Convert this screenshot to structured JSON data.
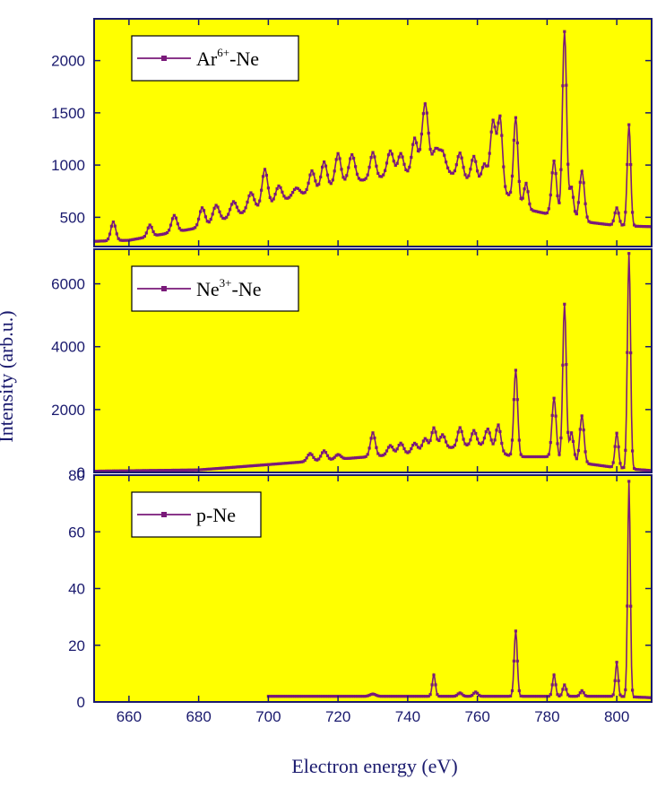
{
  "colors": {
    "plot_background": "#ffff00",
    "series_line": "#7a1a7a",
    "axis": "#1a1a6e",
    "legend_background": "#ffffff"
  },
  "xlabel": "Electron energy (eV)",
  "ylabel": "Intensity (arb.u.)",
  "chart_data": [
    {
      "type": "line",
      "panel": "top",
      "legend": {
        "base": "Ar",
        "sup": "6+",
        "suffix": "-Ne",
        "placement": "top-left"
      },
      "xlim": [
        650,
        810
      ],
      "ylim": [
        220,
        2400
      ],
      "xticks": [
        660,
        680,
        700,
        720,
        740,
        760,
        780,
        800
      ],
      "yticks": [
        500,
        1000,
        1500,
        2000
      ],
      "ytick_labels": [
        "500",
        "1000",
        "1500",
        "2000"
      ],
      "baseline": {
        "x": [
          650,
          660,
          680,
          700,
          720,
          740,
          750,
          760,
          770,
          775,
          790,
          800,
          810
        ],
        "y": [
          270,
          280,
          400,
          620,
          820,
          920,
          950,
          820,
          700,
          570,
          460,
          420,
          410
        ]
      },
      "peaks": [
        {
          "x": 655.5,
          "h": 180,
          "w": 0.7
        },
        {
          "x": 666,
          "h": 110,
          "w": 0.7
        },
        {
          "x": 673,
          "h": 160,
          "w": 0.8
        },
        {
          "x": 681,
          "h": 180,
          "w": 0.8
        },
        {
          "x": 685,
          "h": 160,
          "w": 0.9
        },
        {
          "x": 690,
          "h": 140,
          "w": 0.9
        },
        {
          "x": 695,
          "h": 170,
          "w": 0.9
        },
        {
          "x": 699,
          "h": 350,
          "w": 0.8
        },
        {
          "x": 703,
          "h": 150,
          "w": 0.9
        },
        {
          "x": 708,
          "h": 80,
          "w": 1.0
        },
        {
          "x": 712.5,
          "h": 200,
          "w": 0.8
        },
        {
          "x": 716,
          "h": 250,
          "w": 0.8
        },
        {
          "x": 720,
          "h": 290,
          "w": 0.8
        },
        {
          "x": 724,
          "h": 260,
          "w": 0.9
        },
        {
          "x": 730,
          "h": 250,
          "w": 0.8
        },
        {
          "x": 735,
          "h": 240,
          "w": 0.9
        },
        {
          "x": 738,
          "h": 200,
          "w": 0.8
        },
        {
          "x": 742,
          "h": 330,
          "w": 0.8
        },
        {
          "x": 745,
          "h": 650,
          "w": 0.9
        },
        {
          "x": 748,
          "h": 200,
          "w": 0.9
        },
        {
          "x": 750,
          "h": 170,
          "w": 0.9
        },
        {
          "x": 755,
          "h": 230,
          "w": 0.8
        },
        {
          "x": 759,
          "h": 250,
          "w": 0.8
        },
        {
          "x": 762,
          "h": 210,
          "w": 0.8
        },
        {
          "x": 764.5,
          "h": 650,
          "w": 0.8
        },
        {
          "x": 766.5,
          "h": 700,
          "w": 0.7
        },
        {
          "x": 771,
          "h": 780,
          "w": 0.6
        },
        {
          "x": 774,
          "h": 230,
          "w": 0.6
        },
        {
          "x": 782,
          "h": 520,
          "w": 0.7
        },
        {
          "x": 785,
          "h": 1780,
          "w": 0.6
        },
        {
          "x": 787,
          "h": 300,
          "w": 0.6
        },
        {
          "x": 790,
          "h": 480,
          "w": 0.7
        },
        {
          "x": 800,
          "h": 170,
          "w": 0.6
        },
        {
          "x": 803.5,
          "h": 970,
          "w": 0.5
        }
      ]
    },
    {
      "type": "line",
      "panel": "middle",
      "legend": {
        "base": "Ne",
        "sup": "3+",
        "suffix": "-Ne",
        "placement": "top-left"
      },
      "xlim": [
        650,
        810
      ],
      "ylim": [
        0,
        7100
      ],
      "xticks": [
        660,
        680,
        700,
        720,
        740,
        760,
        780,
        800
      ],
      "yticks": [
        0,
        2000,
        4000,
        6000
      ],
      "ytick_labels": [
        "0",
        "2000",
        "4000",
        "6000"
      ],
      "baseline": {
        "x": [
          650,
          680,
          700,
          720,
          740,
          760,
          770,
          780,
          790,
          800,
          805,
          810
        ],
        "y": [
          40,
          80,
          250,
          420,
          600,
          900,
          500,
          500,
          300,
          150,
          100,
          60
        ]
      },
      "peaks": [
        {
          "x": 712,
          "h": 250,
          "w": 0.8
        },
        {
          "x": 716,
          "h": 300,
          "w": 0.8
        },
        {
          "x": 720,
          "h": 150,
          "w": 0.8
        },
        {
          "x": 730,
          "h": 750,
          "w": 0.7
        },
        {
          "x": 735,
          "h": 300,
          "w": 0.8
        },
        {
          "x": 738,
          "h": 350,
          "w": 0.8
        },
        {
          "x": 742,
          "h": 300,
          "w": 0.8
        },
        {
          "x": 745,
          "h": 400,
          "w": 0.8
        },
        {
          "x": 747.5,
          "h": 700,
          "w": 0.7
        },
        {
          "x": 750,
          "h": 450,
          "w": 0.8
        },
        {
          "x": 755,
          "h": 600,
          "w": 0.7
        },
        {
          "x": 759,
          "h": 450,
          "w": 0.7
        },
        {
          "x": 763,
          "h": 600,
          "w": 0.8
        },
        {
          "x": 766,
          "h": 850,
          "w": 0.7
        },
        {
          "x": 771,
          "h": 2750,
          "w": 0.55
        },
        {
          "x": 782,
          "h": 1900,
          "w": 0.6
        },
        {
          "x": 785,
          "h": 4950,
          "w": 0.5
        },
        {
          "x": 787,
          "h": 900,
          "w": 0.6
        },
        {
          "x": 790,
          "h": 1500,
          "w": 0.6
        },
        {
          "x": 800,
          "h": 1100,
          "w": 0.5
        },
        {
          "x": 803.5,
          "h": 6850,
          "w": 0.45
        }
      ]
    },
    {
      "type": "line",
      "panel": "bottom",
      "legend": {
        "base": "p-Ne",
        "sup": "",
        "suffix": "",
        "placement": "top-left"
      },
      "xlim": [
        650,
        810
      ],
      "ylim": [
        0,
        80
      ],
      "xticks": [
        660,
        680,
        700,
        720,
        740,
        760,
        780,
        800
      ],
      "xtick_labels": [
        "660",
        "680",
        "700",
        "720",
        "740",
        "760",
        "780",
        "800"
      ],
      "yticks": [
        0,
        20,
        40,
        60,
        80
      ],
      "ytick_labels": [
        "0",
        "20",
        "40",
        "60",
        "80"
      ],
      "x_start": 700,
      "baseline": {
        "x": [
          700,
          720,
          740,
          760,
          780,
          800,
          810
        ],
        "y": [
          2,
          2,
          2,
          2,
          2,
          2,
          1.5
        ]
      },
      "peaks": [
        {
          "x": 730,
          "h": 0.8,
          "w": 0.8
        },
        {
          "x": 747.5,
          "h": 7.5,
          "w": 0.45
        },
        {
          "x": 755,
          "h": 1.2,
          "w": 0.6
        },
        {
          "x": 759.5,
          "h": 1.5,
          "w": 0.6
        },
        {
          "x": 771,
          "h": 23,
          "w": 0.45
        },
        {
          "x": 782,
          "h": 7.5,
          "w": 0.45
        },
        {
          "x": 785,
          "h": 4,
          "w": 0.5
        },
        {
          "x": 790,
          "h": 2,
          "w": 0.5
        },
        {
          "x": 800,
          "h": 12,
          "w": 0.4
        },
        {
          "x": 803.5,
          "h": 76,
          "w": 0.38
        }
      ]
    }
  ]
}
